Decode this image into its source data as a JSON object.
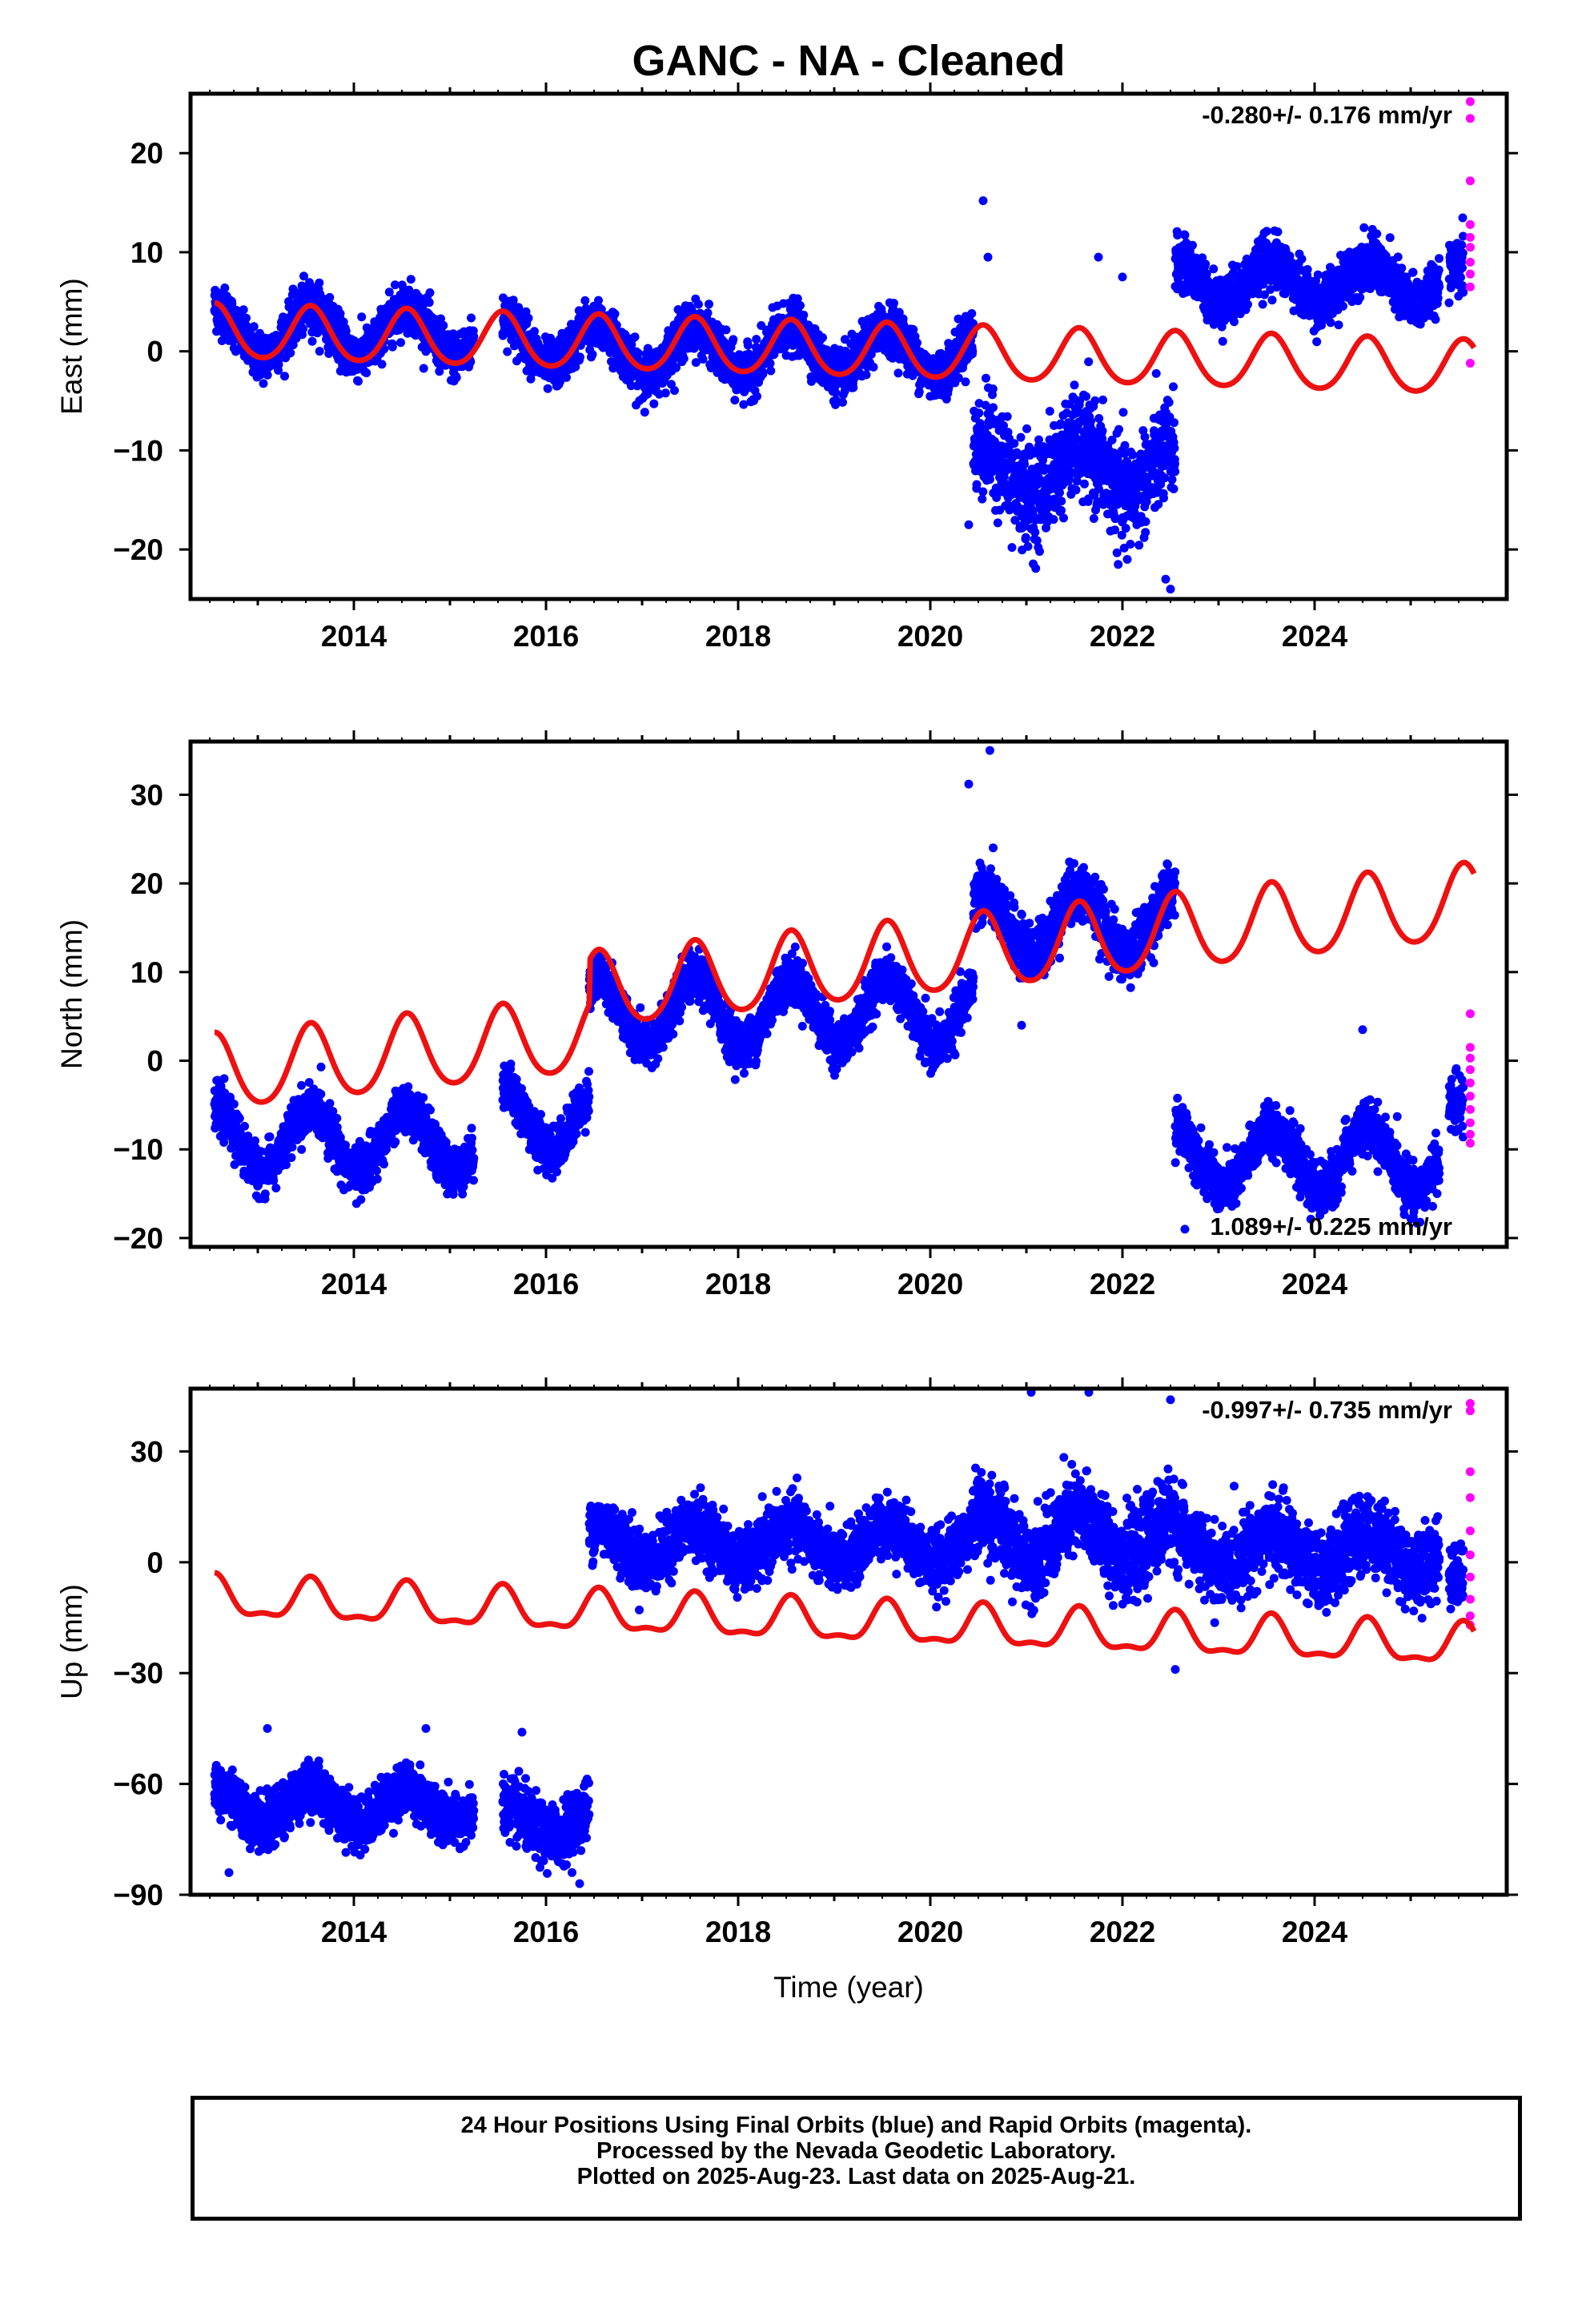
{
  "title": "GANC  - NA - Cleaned",
  "colors": {
    "final_orbits": "#0000ff",
    "rapid_orbits": "#ff00ff",
    "model": "#ee1111",
    "axes": "#000000"
  },
  "chart_data": [
    {
      "type": "scatter",
      "ylabel": "East (mm)",
      "xlabel": "",
      "xlim": [
        2012.3,
        2026.0
      ],
      "ylim": [
        -25,
        26
      ],
      "yticks": [
        -20,
        -10,
        0,
        10,
        20
      ],
      "xticks": [
        2014,
        2016,
        2018,
        2020,
        2022,
        2024
      ],
      "rate_label": "-0.280+/- 0.176 mm/yr",
      "rate_position": "top-right",
      "final_orbits": {
        "segments": [
          {
            "start": 2012.55,
            "end": 2015.25,
            "offset": 2.0,
            "amp": 2.5,
            "scatter": 1.2
          },
          {
            "start": 2015.55,
            "end": 2016.45,
            "offset": 1.0,
            "amp": 2.5,
            "scatter": 1.2
          },
          {
            "start": 2016.45,
            "end": 2020.45,
            "offset": 0.0,
            "amp": 2.4,
            "scatter": 1.2
          },
          {
            "start": 2020.45,
            "end": 2022.55,
            "offset": -12.0,
            "amp": 2.5,
            "scatter": 2.5
          },
          {
            "start": 2022.55,
            "end": 2025.3,
            "offset": 7.0,
            "amp": 2.0,
            "scatter": 1.3
          },
          {
            "start": 2025.4,
            "end": 2025.55,
            "offset": 9.0,
            "amp": 0.0,
            "scatter": 1.5
          }
        ],
        "outliers": [
          [
            2020.55,
            15.2
          ],
          [
            2020.6,
            9.5
          ],
          [
            2020.4,
            -17.5
          ],
          [
            2021.75,
            9.5
          ],
          [
            2022.0,
            7.5
          ],
          [
            2022.5,
            -24.0
          ],
          [
            2022.45,
            -23.0
          ],
          [
            2022.05,
            -21.0
          ],
          [
            2020.85,
            -19.8
          ]
        ]
      },
      "rapid_orbits": [
        [
          2025.62,
          25.2
        ],
        [
          2025.62,
          23.5
        ],
        [
          2025.62,
          17.2
        ],
        [
          2025.62,
          12.8
        ],
        [
          2025.62,
          11.5
        ],
        [
          2025.62,
          10.5
        ],
        [
          2025.62,
          9.0
        ],
        [
          2025.62,
          7.8
        ],
        [
          2025.62,
          6.5
        ],
        [
          2025.62,
          -1.2
        ]
      ],
      "model": {
        "trend_at_start": 1.9,
        "rate": -0.28,
        "annual_amp": 2.7,
        "annual_phase": 2012.55,
        "semiannual_amp": 0.3,
        "offsets": []
      }
    },
    {
      "type": "scatter",
      "ylabel": "North (mm)",
      "xlabel": "",
      "xlim": [
        2012.3,
        2026.0
      ],
      "ylim": [
        -21,
        36
      ],
      "yticks": [
        -20,
        -10,
        0,
        10,
        20,
        30
      ],
      "xticks": [
        2014,
        2016,
        2018,
        2020,
        2022,
        2024
      ],
      "rate_label": "1.089+/- 0.225 mm/yr",
      "rate_position": "bottom-right",
      "final_orbits": {
        "segments": [
          {
            "start": 2012.55,
            "end": 2015.25,
            "offset": -9.0,
            "amp": 3.5,
            "scatter": 1.3
          },
          {
            "start": 2015.55,
            "end": 2016.45,
            "offset": -6.5,
            "amp": 3.5,
            "scatter": 1.3
          },
          {
            "start": 2016.45,
            "end": 2020.45,
            "offset": 5.5,
            "amp": 3.8,
            "scatter": 1.3
          },
          {
            "start": 2020.45,
            "end": 2022.55,
            "offset": 15.5,
            "amp": 3.5,
            "scatter": 1.6
          },
          {
            "start": 2022.55,
            "end": 2025.3,
            "offset": -11.0,
            "amp": 3.5,
            "scatter": 1.4
          },
          {
            "start": 2025.4,
            "end": 2025.55,
            "offset": -5.0,
            "amp": 0.0,
            "scatter": 1.5
          }
        ],
        "outliers": [
          [
            2020.4,
            31.2
          ],
          [
            2020.62,
            35.0
          ],
          [
            2022.65,
            -19.0
          ],
          [
            2024.5,
            3.5
          ],
          [
            2020.95,
            4.0
          ]
        ]
      },
      "rapid_orbits": [
        [
          2025.62,
          5.3
        ],
        [
          2025.62,
          1.5
        ],
        [
          2025.62,
          0.3
        ],
        [
          2025.62,
          -1.0
        ],
        [
          2025.62,
          -2.5
        ],
        [
          2025.62,
          -4.0
        ],
        [
          2025.62,
          -5.5
        ],
        [
          2025.62,
          -7.0
        ],
        [
          2025.62,
          -8.3
        ],
        [
          2025.62,
          -9.3
        ]
      ],
      "model": {
        "trend_at_start": -1.5,
        "rate": 1.089,
        "annual_amp": 4.2,
        "annual_phase": 2012.55,
        "semiannual_amp": 0.5,
        "offsets": [
          [
            2016.45,
            5.0
          ]
        ]
      }
    },
    {
      "type": "scatter",
      "ylabel": "Up (mm)",
      "xlabel": "Time (year)",
      "xlim": [
        2012.3,
        2026.0
      ],
      "ylim": [
        -90,
        47
      ],
      "yticks": [
        -90,
        -60,
        -30,
        0,
        30
      ],
      "xticks": [
        2014,
        2016,
        2018,
        2020,
        2022,
        2024
      ],
      "rate_label": "-0.997+/- 0.735 mm/yr",
      "rate_position": "top-right",
      "final_orbits": {
        "segments": [
          {
            "start": 2012.55,
            "end": 2015.25,
            "offset": -66.0,
            "amp": 4.5,
            "scatter": 3.5
          },
          {
            "start": 2015.55,
            "end": 2016.45,
            "offset": -70.0,
            "amp": 4.0,
            "scatter": 4.0
          },
          {
            "start": 2016.45,
            "end": 2020.45,
            "offset": 5.0,
            "amp": 5.0,
            "scatter": 4.0
          },
          {
            "start": 2020.45,
            "end": 2022.55,
            "offset": 7.0,
            "amp": 6.0,
            "scatter": 5.5
          },
          {
            "start": 2022.55,
            "end": 2025.3,
            "offset": 3.0,
            "amp": 5.0,
            "scatter": 5.0
          },
          {
            "start": 2025.4,
            "end": 2025.55,
            "offset": -4.0,
            "amp": 0.0,
            "scatter": 4.0
          }
        ],
        "outliers": [
          [
            2012.7,
            -84.0
          ],
          [
            2016.35,
            -87.0
          ],
          [
            2022.5,
            44.0
          ],
          [
            2021.65,
            46.0
          ],
          [
            2021.05,
            46.0
          ],
          [
            2022.55,
            -29.0
          ],
          [
            2013.1,
            -45.0
          ],
          [
            2014.75,
            -45.0
          ],
          [
            2015.75,
            -46.0
          ]
        ]
      },
      "rapid_orbits": [
        [
          2025.62,
          43.0
        ],
        [
          2025.62,
          41.0
        ],
        [
          2025.62,
          24.5
        ],
        [
          2025.62,
          17.5
        ],
        [
          2025.62,
          8.5
        ],
        [
          2025.62,
          2.0
        ],
        [
          2025.62,
          -4.0
        ],
        [
          2025.62,
          -10.0
        ],
        [
          2025.62,
          -14.5
        ],
        [
          2025.62,
          -17.0
        ]
      ],
      "model": {
        "trend_at_start": -10.0,
        "rate": -0.997,
        "annual_amp": 5.2,
        "annual_phase": 2012.55,
        "semiannual_amp": 2.0,
        "offsets": []
      }
    }
  ],
  "footer": {
    "line1": "24 Hour Positions Using Final Orbits (blue) and Rapid Orbits (magenta).",
    "line2": "Processed by the Nevada Geodetic Laboratory.",
    "line3": "Plotted on 2025-Aug-23. Last data on 2025-Aug-21."
  }
}
